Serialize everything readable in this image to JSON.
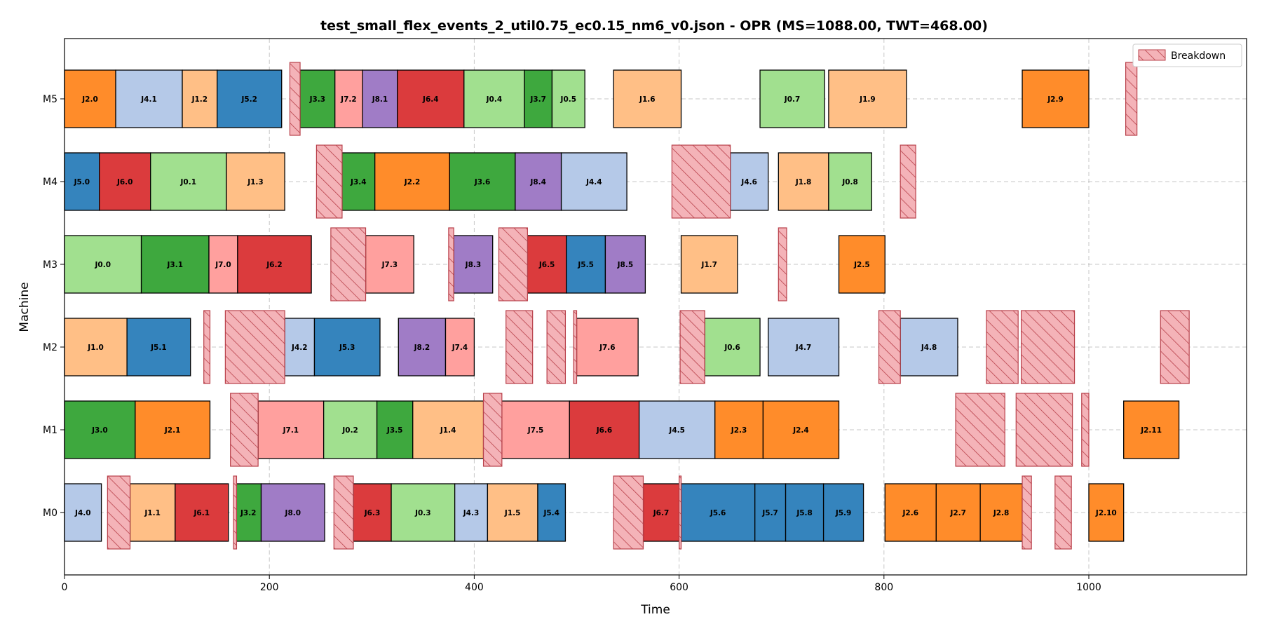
{
  "chart_data": {
    "type": "gantt",
    "title": "test_small_flex_events_2_util0.75_ec0.15_nm6_v0.json - OPR (MS=1088.00, TWT=468.00)",
    "xlabel": "Time",
    "ylabel": "Machine",
    "xlim": [
      0,
      1150
    ],
    "xticks": [
      0,
      200,
      400,
      600,
      800,
      1000
    ],
    "grid": true,
    "legend": {
      "position": "top-right",
      "entries": [
        "Breakdown"
      ]
    },
    "machines": [
      "M0",
      "M1",
      "M2",
      "M3",
      "M4",
      "M5"
    ],
    "job_colors": {
      "J0": "#a1e08f",
      "J1": "#ffbf86",
      "J2": "#ff8c2a",
      "J3": "#3ea83e",
      "J4": "#b5c9e8",
      "J5": "#3584bd",
      "J6": "#db3b3d",
      "J7": "#ffa09e",
      "J8": "#a07cc6"
    },
    "breakdown_color": "#f4b3b8",
    "operations": [
      {
        "machine": "M0",
        "label": "J4.0",
        "start": 0,
        "end": 36
      },
      {
        "machine": "M0",
        "label": "J1.1",
        "start": 64,
        "end": 108
      },
      {
        "machine": "M0",
        "label": "J6.1",
        "start": 108,
        "end": 160
      },
      {
        "machine": "M0",
        "label": "J3.2",
        "start": 167,
        "end": 192
      },
      {
        "machine": "M0",
        "label": "J8.0",
        "start": 192,
        "end": 254
      },
      {
        "machine": "M0",
        "label": "J6.3",
        "start": 282,
        "end": 319
      },
      {
        "machine": "M0",
        "label": "J0.3",
        "start": 319,
        "end": 381
      },
      {
        "machine": "M0",
        "label": "J4.3",
        "start": 381,
        "end": 413
      },
      {
        "machine": "M0",
        "label": "J1.5",
        "start": 413,
        "end": 462
      },
      {
        "machine": "M0",
        "label": "J5.4",
        "start": 462,
        "end": 489
      },
      {
        "machine": "M0",
        "label": "J6.7",
        "start": 565,
        "end": 600
      },
      {
        "machine": "M0",
        "label": "J5.6",
        "start": 602,
        "end": 674
      },
      {
        "machine": "M0",
        "label": "J5.7",
        "start": 674,
        "end": 704
      },
      {
        "machine": "M0",
        "label": "J5.8",
        "start": 704,
        "end": 741
      },
      {
        "machine": "M0",
        "label": "J5.9",
        "start": 741,
        "end": 780
      },
      {
        "machine": "M0",
        "label": "J2.6",
        "start": 801,
        "end": 851
      },
      {
        "machine": "M0",
        "label": "J2.7",
        "start": 851,
        "end": 894
      },
      {
        "machine": "M0",
        "label": "J2.8",
        "start": 894,
        "end": 935
      },
      {
        "machine": "M0",
        "label": "J2.10",
        "start": 1000,
        "end": 1034
      },
      {
        "machine": "M1",
        "label": "J3.0",
        "start": 0,
        "end": 69
      },
      {
        "machine": "M1",
        "label": "J2.1",
        "start": 69,
        "end": 142
      },
      {
        "machine": "M1",
        "label": "J7.1",
        "start": 189,
        "end": 253
      },
      {
        "machine": "M1",
        "label": "J0.2",
        "start": 253,
        "end": 305
      },
      {
        "machine": "M1",
        "label": "J3.5",
        "start": 305,
        "end": 340
      },
      {
        "machine": "M1",
        "label": "J1.4",
        "start": 340,
        "end": 409
      },
      {
        "machine": "M1",
        "label": "J7.5",
        "start": 427,
        "end": 493
      },
      {
        "machine": "M1",
        "label": "J6.6",
        "start": 493,
        "end": 561
      },
      {
        "machine": "M1",
        "label": "J4.5",
        "start": 561,
        "end": 635
      },
      {
        "machine": "M1",
        "label": "J2.3",
        "start": 635,
        "end": 682
      },
      {
        "machine": "M1",
        "label": "J2.4",
        "start": 682,
        "end": 756
      },
      {
        "machine": "M1",
        "label": "J2.11",
        "start": 1034,
        "end": 1088
      },
      {
        "machine": "M2",
        "label": "J1.0",
        "start": 0,
        "end": 61
      },
      {
        "machine": "M2",
        "label": "J5.1",
        "start": 61,
        "end": 123
      },
      {
        "machine": "M2",
        "label": "J4.2",
        "start": 215,
        "end": 244
      },
      {
        "machine": "M2",
        "label": "J5.3",
        "start": 244,
        "end": 308
      },
      {
        "machine": "M2",
        "label": "J8.2",
        "start": 326,
        "end": 372
      },
      {
        "machine": "M2",
        "label": "J7.4",
        "start": 372,
        "end": 400
      },
      {
        "machine": "M2",
        "label": "J7.6",
        "start": 500,
        "end": 560
      },
      {
        "machine": "M2",
        "label": "J0.6",
        "start": 625,
        "end": 679
      },
      {
        "machine": "M2",
        "label": "J4.7",
        "start": 687,
        "end": 756
      },
      {
        "machine": "M2",
        "label": "J4.8",
        "start": 816,
        "end": 872
      },
      {
        "machine": "M3",
        "label": "J0.0",
        "start": 0,
        "end": 75
      },
      {
        "machine": "M3",
        "label": "J3.1",
        "start": 75,
        "end": 141
      },
      {
        "machine": "M3",
        "label": "J7.0",
        "start": 141,
        "end": 169
      },
      {
        "machine": "M3",
        "label": "J6.2",
        "start": 169,
        "end": 241
      },
      {
        "machine": "M3",
        "label": "J7.3",
        "start": 294,
        "end": 341
      },
      {
        "machine": "M3",
        "label": "J8.3",
        "start": 380,
        "end": 418
      },
      {
        "machine": "M3",
        "label": "J6.5",
        "start": 452,
        "end": 490
      },
      {
        "machine": "M3",
        "label": "J5.5",
        "start": 490,
        "end": 528
      },
      {
        "machine": "M3",
        "label": "J8.5",
        "start": 528,
        "end": 567
      },
      {
        "machine": "M3",
        "label": "J1.7",
        "start": 602,
        "end": 657
      },
      {
        "machine": "M3",
        "label": "J2.5",
        "start": 756,
        "end": 801
      },
      {
        "machine": "M4",
        "label": "J5.0",
        "start": 0,
        "end": 34
      },
      {
        "machine": "M4",
        "label": "J6.0",
        "start": 34,
        "end": 84
      },
      {
        "machine": "M4",
        "label": "J0.1",
        "start": 84,
        "end": 158
      },
      {
        "machine": "M4",
        "label": "J1.3",
        "start": 158,
        "end": 215
      },
      {
        "machine": "M4",
        "label": "J3.4",
        "start": 271,
        "end": 303
      },
      {
        "machine": "M4",
        "label": "J2.2",
        "start": 303,
        "end": 376
      },
      {
        "machine": "M4",
        "label": "J3.6",
        "start": 376,
        "end": 440
      },
      {
        "machine": "M4",
        "label": "J8.4",
        "start": 440,
        "end": 485
      },
      {
        "machine": "M4",
        "label": "J4.4",
        "start": 485,
        "end": 549
      },
      {
        "machine": "M4",
        "label": "J4.6",
        "start": 650,
        "end": 687
      },
      {
        "machine": "M4",
        "label": "J1.8",
        "start": 697,
        "end": 746
      },
      {
        "machine": "M4",
        "label": "J0.8",
        "start": 746,
        "end": 788
      },
      {
        "machine": "M5",
        "label": "J2.0",
        "start": 0,
        "end": 50
      },
      {
        "machine": "M5",
        "label": "J4.1",
        "start": 50,
        "end": 115
      },
      {
        "machine": "M5",
        "label": "J1.2",
        "start": 115,
        "end": 149
      },
      {
        "machine": "M5",
        "label": "J5.2",
        "start": 149,
        "end": 212
      },
      {
        "machine": "M5",
        "label": "J3.3",
        "start": 230,
        "end": 264
      },
      {
        "machine": "M5",
        "label": "J7.2",
        "start": 264,
        "end": 291
      },
      {
        "machine": "M5",
        "label": "J8.1",
        "start": 291,
        "end": 325
      },
      {
        "machine": "M5",
        "label": "J6.4",
        "start": 325,
        "end": 390
      },
      {
        "machine": "M5",
        "label": "J0.4",
        "start": 390,
        "end": 449
      },
      {
        "machine": "M5",
        "label": "J3.7",
        "start": 449,
        "end": 476
      },
      {
        "machine": "M5",
        "label": "J0.5",
        "start": 476,
        "end": 508
      },
      {
        "machine": "M5",
        "label": "J1.6",
        "start": 536,
        "end": 602
      },
      {
        "machine": "M5",
        "label": "J0.7",
        "start": 679,
        "end": 742
      },
      {
        "machine": "M5",
        "label": "J1.9",
        "start": 746,
        "end": 822
      },
      {
        "machine": "M5",
        "label": "J2.9",
        "start": 935,
        "end": 1000
      }
    ],
    "breakdowns": [
      {
        "machine": "M0",
        "start": 42,
        "end": 64
      },
      {
        "machine": "M0",
        "start": 165,
        "end": 168
      },
      {
        "machine": "M0",
        "start": 263,
        "end": 282
      },
      {
        "machine": "M0",
        "start": 536,
        "end": 565
      },
      {
        "machine": "M0",
        "start": 600,
        "end": 602
      },
      {
        "machine": "M0",
        "start": 935,
        "end": 944
      },
      {
        "machine": "M0",
        "start": 967,
        "end": 983
      },
      {
        "machine": "M1",
        "start": 162,
        "end": 189
      },
      {
        "machine": "M1",
        "start": 409,
        "end": 427
      },
      {
        "machine": "M1",
        "start": 870,
        "end": 918
      },
      {
        "machine": "M1",
        "start": 929,
        "end": 984
      },
      {
        "machine": "M1",
        "start": 993,
        "end": 1000
      },
      {
        "machine": "M2",
        "start": 136,
        "end": 142
      },
      {
        "machine": "M2",
        "start": 157,
        "end": 215
      },
      {
        "machine": "M2",
        "start": 431,
        "end": 457
      },
      {
        "machine": "M2",
        "start": 471,
        "end": 489
      },
      {
        "machine": "M2",
        "start": 497,
        "end": 500
      },
      {
        "machine": "M2",
        "start": 601,
        "end": 625
      },
      {
        "machine": "M2",
        "start": 795,
        "end": 816
      },
      {
        "machine": "M2",
        "start": 900,
        "end": 931
      },
      {
        "machine": "M2",
        "start": 934,
        "end": 986
      },
      {
        "machine": "M2",
        "start": 1070,
        "end": 1098
      },
      {
        "machine": "M3",
        "start": 260,
        "end": 294
      },
      {
        "machine": "M3",
        "start": 375,
        "end": 380
      },
      {
        "machine": "M3",
        "start": 424,
        "end": 452
      },
      {
        "machine": "M3",
        "start": 697,
        "end": 705
      },
      {
        "machine": "M4",
        "start": 246,
        "end": 271
      },
      {
        "machine": "M4",
        "start": 593,
        "end": 650
      },
      {
        "machine": "M4",
        "start": 816,
        "end": 831
      },
      {
        "machine": "M5",
        "start": 220,
        "end": 230
      },
      {
        "machine": "M5",
        "start": 1036,
        "end": 1047
      }
    ]
  }
}
